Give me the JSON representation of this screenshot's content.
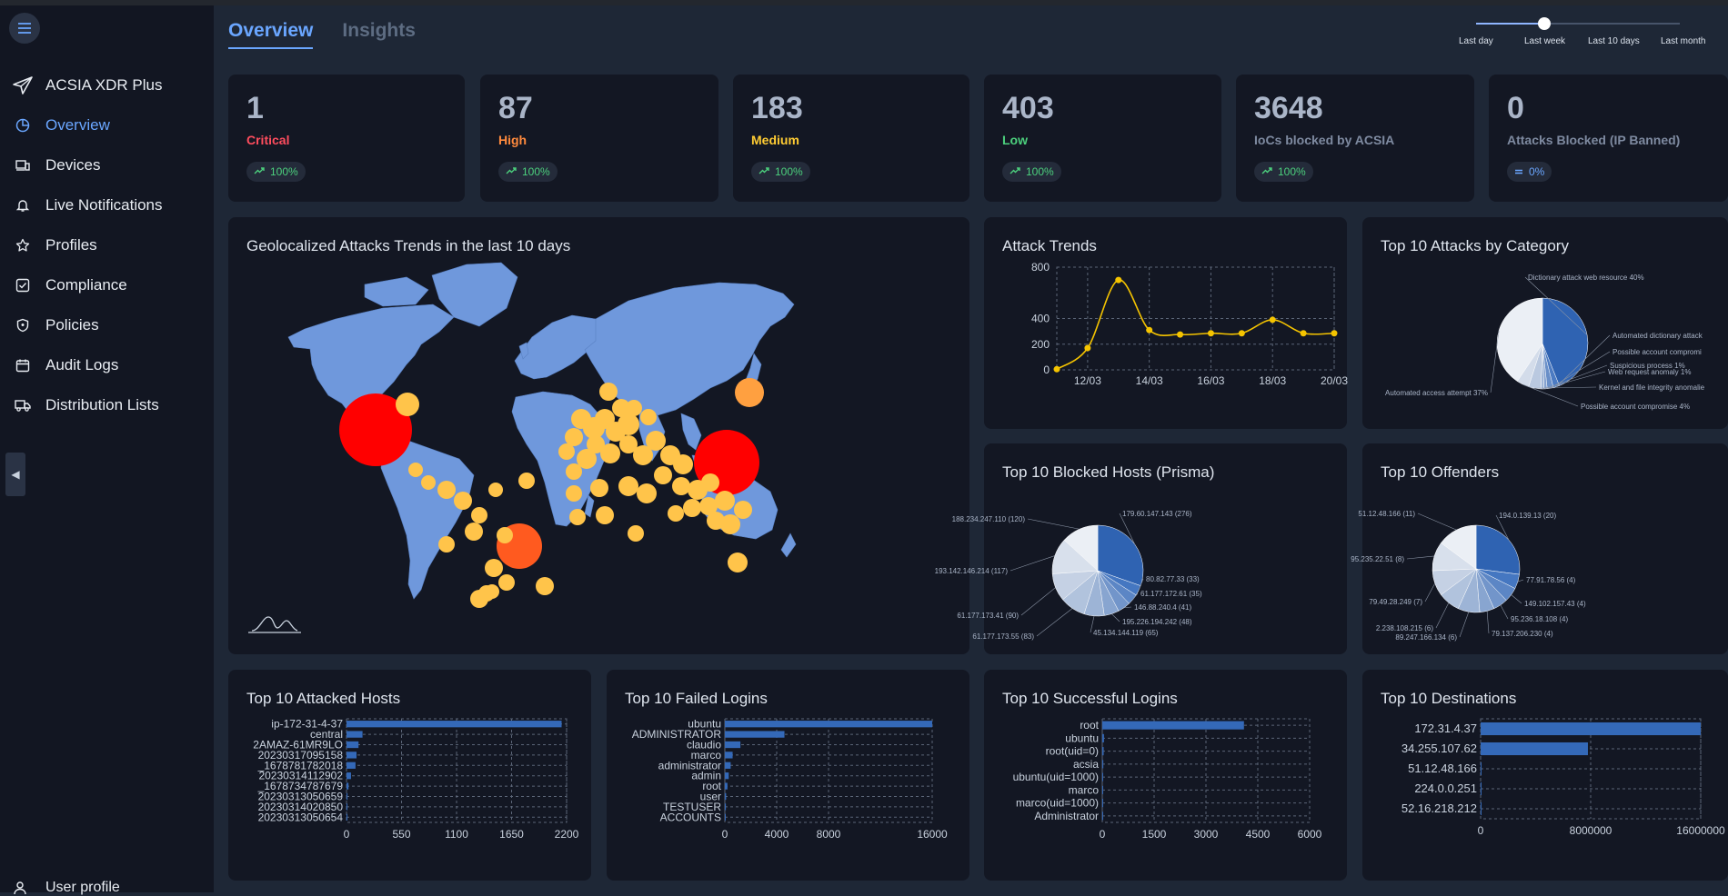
{
  "app": {
    "name": "ACSIA XDR Plus"
  },
  "sidebar": {
    "items": [
      {
        "label": "Overview",
        "active": true
      },
      {
        "label": "Devices"
      },
      {
        "label": "Live Notifications"
      },
      {
        "label": "Profiles"
      },
      {
        "label": "Compliance"
      },
      {
        "label": "Policies"
      },
      {
        "label": "Audit Logs"
      },
      {
        "label": "Distribution Lists"
      }
    ],
    "user_profile": "User profile"
  },
  "tabs": [
    {
      "label": "Overview",
      "active": true
    },
    {
      "label": "Insights"
    }
  ],
  "time_range": {
    "options": [
      "Last day",
      "Last week",
      "Last 10 days",
      "Last month"
    ],
    "selected": "Last week"
  },
  "stats": [
    {
      "value": "1",
      "label": "Critical",
      "color": "#ff4d5e",
      "trend": "100%",
      "trend_icon": "trending-up-icon"
    },
    {
      "value": "87",
      "label": "High",
      "color": "#ff8a3d",
      "trend": "100%",
      "trend_icon": "trending-up-icon"
    },
    {
      "value": "183",
      "label": "Medium",
      "color": "#ffcc33",
      "trend": "100%",
      "trend_icon": "trending-up-icon"
    },
    {
      "value": "403",
      "label": "Low",
      "color": "#4cd07d",
      "trend": "100%",
      "trend_icon": "trending-up-icon"
    },
    {
      "value": "3648",
      "label": "IoCs blocked by ACSIA",
      "color": "#7e8aa0",
      "trend": "100%",
      "trend_icon": "trending-up-icon"
    },
    {
      "value": "0",
      "label": "Attacks Blocked (IP Banned)",
      "color": "#7e8aa0",
      "trend": "0%",
      "trend_icon": "equals-icon"
    }
  ],
  "panels": {
    "geo": {
      "title": "Geolocalized Attacks Trends in the last 10 days"
    },
    "attack_trends": {
      "title": "Attack Trends"
    },
    "by_category": {
      "title": "Top 10 Attacks by Category"
    },
    "blocked_hosts": {
      "title": "Top 10 Blocked Hosts (Prisma)"
    },
    "offenders": {
      "title": "Top 10 Offenders"
    },
    "attacked_hosts": {
      "title": "Top 10 Attacked Hosts"
    },
    "failed_logins": {
      "title": "Top 10 Failed Logins"
    },
    "successful_logins": {
      "title": "Top 10 Successful Logins"
    },
    "destinations": {
      "title": "Top 10 Destinations"
    }
  },
  "chart_data": [
    {
      "id": "attack_trends",
      "type": "line",
      "x": [
        "11/03",
        "12/03",
        "13/03",
        "14/03",
        "15/03",
        "16/03",
        "17/03",
        "18/03",
        "19/03",
        "20/03"
      ],
      "x_ticks": [
        "12/03",
        "14/03",
        "16/03",
        "18/03",
        "20/03"
      ],
      "values": [
        5,
        170,
        700,
        310,
        275,
        285,
        285,
        390,
        285,
        285
      ],
      "ylim": [
        0,
        800
      ],
      "y_ticks": [
        0,
        200,
        400,
        800
      ],
      "color": "#f5c400",
      "grid": true
    },
    {
      "id": "by_category",
      "type": "pie",
      "slices": [
        {
          "label": "Dictionary attack web resource 40%",
          "value": 40
        },
        {
          "label": "Automated dictionary attack",
          "value": 2
        },
        {
          "label": "Possible account compromi",
          "value": 2
        },
        {
          "label": "Suspicious process 1%",
          "value": 1
        },
        {
          "label": "Web request anomaly 1%",
          "value": 1
        },
        {
          "label": "Kernel and file integrity anomalie",
          "value": 4
        },
        {
          "label": "Possible account compromise 4%",
          "value": 4
        },
        {
          "label": "Automated access attempt 37%",
          "value": 37
        }
      ]
    },
    {
      "id": "blocked_hosts",
      "type": "pie",
      "slices": [
        {
          "label": "179.60.147.143 (276)",
          "value": 276
        },
        {
          "label": "80.82.77.33 (33)",
          "value": 33
        },
        {
          "label": "61.177.172.61 (35)",
          "value": 35
        },
        {
          "label": "146.88.240.4 (41)",
          "value": 41
        },
        {
          "label": "195.226.194.242 (48)",
          "value": 48
        },
        {
          "label": "45.134.144.119 (65)",
          "value": 65
        },
        {
          "label": "61.177.173.55 (83)",
          "value": 83
        },
        {
          "label": "61.177.173.41 (90)",
          "value": 90
        },
        {
          "label": "193.142.146.214 (117)",
          "value": 117
        },
        {
          "label": "188.234.247.110 (120)",
          "value": 120
        }
      ]
    },
    {
      "id": "offenders",
      "type": "pie",
      "slices": [
        {
          "label": "194.0.139.13 (20)",
          "value": 20
        },
        {
          "label": "77.91.78.56 (4)",
          "value": 4
        },
        {
          "label": "149.102.157.43 (4)",
          "value": 4
        },
        {
          "label": "95.236.18.108 (4)",
          "value": 4
        },
        {
          "label": "79.137.206.230 (4)",
          "value": 4
        },
        {
          "label": "89.247.166.134 (6)",
          "value": 6
        },
        {
          "label": "2.238.108.215 (6)",
          "value": 6
        },
        {
          "label": "79.49.28.249 (7)",
          "value": 7
        },
        {
          "label": "95.235.22.51 (8)",
          "value": 8
        },
        {
          "label": "51.12.48.166 (11)",
          "value": 11
        }
      ]
    },
    {
      "id": "attacked_hosts",
      "type": "bar",
      "orientation": "horizontal",
      "categories": [
        "ip-172-31-4-37",
        "central",
        "2AMAZ-61MR9LO",
        "20230317095158",
        "_1678781782018",
        "20230314112902",
        "_1678734787679",
        "20230313050659",
        "20230314020850",
        "20230313050654"
      ],
      "values": [
        2150,
        160,
        120,
        100,
        90,
        45,
        20,
        10,
        8,
        5
      ],
      "xlim": [
        0,
        2200
      ],
      "x_ticks": [
        0,
        550,
        1100,
        1650,
        2200
      ]
    },
    {
      "id": "failed_logins",
      "type": "bar",
      "orientation": "horizontal",
      "categories": [
        "ubuntu",
        "ADMINISTRATOR",
        "claudio",
        "marco",
        "administrator",
        "admin",
        "root",
        "user",
        "TESTUSER",
        "ACCOUNTS"
      ],
      "values": [
        16300,
        4600,
        1200,
        600,
        450,
        300,
        200,
        100,
        80,
        50
      ],
      "xlim": [
        0,
        16000
      ],
      "x_ticks": [
        0,
        4000,
        8000,
        16000
      ]
    },
    {
      "id": "successful_logins",
      "type": "bar",
      "orientation": "horizontal",
      "categories": [
        "root",
        "ubuntu",
        "root(uid=0)",
        "acsia",
        "ubuntu(uid=1000)",
        "marco",
        "marco(uid=1000)",
        "Administrator"
      ],
      "values": [
        4100,
        50,
        40,
        30,
        20,
        15,
        10,
        5
      ],
      "xlim": [
        0,
        6000
      ],
      "x_ticks": [
        0,
        1500,
        3000,
        4500,
        6000
      ]
    },
    {
      "id": "destinations",
      "type": "bar",
      "orientation": "horizontal",
      "categories": [
        "172.31.4.37",
        "34.255.107.62",
        "51.12.48.166",
        "224.0.0.251",
        "52.16.218.212"
      ],
      "values": [
        16000000,
        7800000,
        5000,
        3000,
        1000
      ],
      "xlim": [
        0,
        16000000
      ],
      "x_ticks": [
        0,
        8000000,
        16000000
      ]
    }
  ]
}
